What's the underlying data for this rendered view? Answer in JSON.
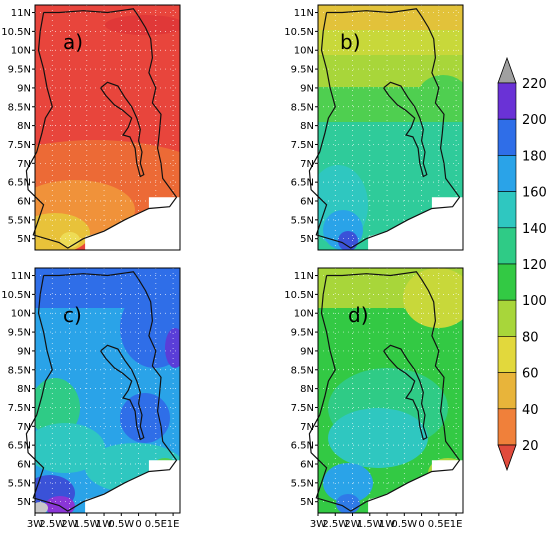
{
  "chart_data": {
    "type": "heatmap",
    "panels": [
      {
        "id": "a",
        "label": "a)",
        "dominant_range": "20-60",
        "dominant_colors": [
          "#e8413a",
          "#f08030",
          "#e8b030"
        ]
      },
      {
        "id": "b",
        "label": "b)",
        "dominant_range": "60-160",
        "dominant_colors": [
          "#e0c43a",
          "#a8d63a",
          "#33cc55",
          "#2fcba0"
        ]
      },
      {
        "id": "c",
        "label": "c)",
        "dominant_range": "120-200",
        "dominant_colors": [
          "#2aa3e8",
          "#2f7ae8",
          "#3a52d8",
          "#2fcba0"
        ]
      },
      {
        "id": "d",
        "label": "d)",
        "dominant_range": "80-160",
        "dominant_colors": [
          "#a8d63a",
          "#33cc55",
          "#2fcba0"
        ]
      }
    ],
    "y_ticks": [
      "11N",
      "10.5N",
      "10N",
      "9.5N",
      "9N",
      "8.5N",
      "8N",
      "7.5N",
      "7N",
      "6.5N",
      "6N",
      "5.5N",
      "5N"
    ],
    "x_ticks": [
      "3W",
      "2.5W",
      "2W",
      "1.5W",
      "1W",
      "0.5W",
      "0",
      "0.5E",
      "1E"
    ],
    "lon_range": [
      -3,
      1.2
    ],
    "lat_range": [
      4.7,
      11.2
    ],
    "colorbar": {
      "levels": [
        20,
        40,
        60,
        80,
        100,
        120,
        140,
        160,
        180,
        200,
        220
      ],
      "colors": [
        "#e04a3c",
        "#f0803a",
        "#e8b43a",
        "#e2d83c",
        "#a8d63a",
        "#33c944",
        "#2fcb86",
        "#2fc7c0",
        "#2aa3e8",
        "#2f6ee8",
        "#6a32d6"
      ],
      "under_color": "#e04a3c",
      "over_color": "#a0a0a0"
    }
  }
}
